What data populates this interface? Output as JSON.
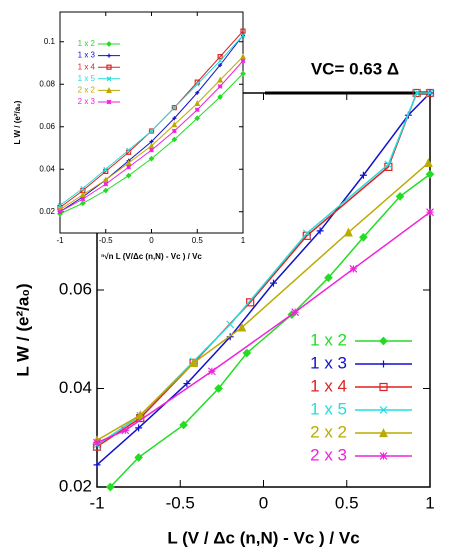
{
  "chart_data": [
    {
      "type": "line",
      "annotation": "VC= 0.63 Δ",
      "xlabel": "L (V / Δc (n,N)  - Vc ) / Vc",
      "ylabel": "L W / (e²/a₀)",
      "xlim": [
        -1,
        1
      ],
      "ylim": [
        0.02,
        0.1
      ],
      "xticks": [
        -1,
        -0.5,
        0,
        0.5,
        1
      ],
      "yticks": [
        0.02,
        0.04,
        0.06
      ],
      "series": [
        {
          "name": "1 x 2",
          "color": "#22dd22",
          "marker": "diamond",
          "x": [
            -0.92,
            -0.75,
            -0.48,
            -0.27,
            -0.1,
            0.17,
            0.39,
            0.6,
            0.82,
            1
          ],
          "values": [
            0.02,
            0.026,
            0.0326,
            0.04,
            0.0472,
            0.055,
            0.0625,
            0.0707,
            0.079,
            0.0835
          ]
        },
        {
          "name": "1 x 3",
          "color": "#1111cc",
          "marker": "plus",
          "x": [
            -1,
            -0.75,
            -0.46,
            -0.2,
            0.06,
            0.34,
            0.6,
            0.87,
            1
          ],
          "values": [
            0.0245,
            0.032,
            0.041,
            0.0505,
            0.0614,
            0.072,
            0.0833,
            0.0955,
            0.1
          ]
        },
        {
          "name": "1 x 4",
          "color": "#dd2222",
          "marker": "square",
          "x": [
            -1,
            -0.74,
            -0.42,
            -0.08,
            0.26,
            0.75,
            0.92,
            1
          ],
          "values": [
            0.0282,
            0.034,
            0.0452,
            0.0575,
            0.071,
            0.085,
            0.1,
            0.1
          ]
        },
        {
          "name": "1 x 5",
          "color": "#22dddd",
          "marker": "x",
          "x": [
            -1,
            -0.74,
            -0.42,
            -0.2,
            0.26,
            0.75,
            0.92,
            1
          ],
          "values": [
            0.0285,
            0.0345,
            0.0455,
            0.053,
            0.0715,
            0.0855,
            0.1,
            0.1
          ]
        },
        {
          "name": "2 x 2",
          "color": "#bbaa00",
          "marker": "triangle",
          "x": [
            -1,
            -0.74,
            -0.42,
            -0.13,
            0.51,
            0.99
          ],
          "values": [
            0.0295,
            0.0346,
            0.0452,
            0.0524,
            0.0717,
            0.0858
          ]
        },
        {
          "name": "2 x 3",
          "color": "#ee22dd",
          "marker": "star",
          "x": [
            -1,
            -0.83,
            -0.31,
            0.19,
            0.54,
            1
          ],
          "values": [
            0.029,
            0.0315,
            0.0435,
            0.0555,
            0.0643,
            0.0758
          ]
        }
      ]
    },
    {
      "type": "line",
      "xlabel": "ⁿ√n L (V/Δc (n,N)  - Vc ) / Vc",
      "ylabel": "L W / (e²/a₀)",
      "xlim": [
        -1,
        1
      ],
      "ylim": [
        0.01,
        0.114
      ],
      "xticks": [
        -1,
        -0.5,
        0,
        0.5,
        1
      ],
      "yticks": [
        0.02,
        0.04,
        0.06,
        0.08,
        0.1
      ],
      "series": [
        {
          "name": "1 x 2",
          "color": "#22dd22",
          "marker": "diamond",
          "x": [
            -1,
            -0.75,
            -0.5,
            -0.25,
            0,
            0.25,
            0.5,
            0.75,
            1
          ],
          "values": [
            0.019,
            0.024,
            0.03,
            0.037,
            0.045,
            0.054,
            0.064,
            0.074,
            0.085
          ]
        },
        {
          "name": "1 x 3",
          "color": "#1111cc",
          "marker": "plus",
          "x": [
            -1,
            -0.75,
            -0.5,
            -0.25,
            0,
            0.25,
            0.5,
            0.75,
            1
          ],
          "values": [
            0.02,
            0.027,
            0.035,
            0.044,
            0.053,
            0.064,
            0.076,
            0.089,
            0.103
          ]
        },
        {
          "name": "1 x 4",
          "color": "#dd2222",
          "marker": "square",
          "x": [
            -1,
            -0.75,
            -0.5,
            -0.25,
            0,
            0.25,
            0.5,
            0.75,
            1
          ],
          "values": [
            0.022,
            0.03,
            0.039,
            0.048,
            0.058,
            0.069,
            0.081,
            0.093,
            0.105
          ]
        },
        {
          "name": "1 x 5",
          "color": "#22dddd",
          "marker": "x",
          "x": [
            -1,
            -0.75,
            -0.5,
            -0.25,
            0,
            0.25,
            0.5,
            0.75,
            1
          ],
          "values": [
            0.023,
            0.031,
            0.04,
            0.049,
            0.058,
            0.069,
            0.08,
            0.091,
            0.103
          ]
        },
        {
          "name": "2 x 2",
          "color": "#bbaa00",
          "marker": "triangle",
          "x": [
            -1,
            -0.75,
            -0.5,
            -0.25,
            0,
            0.25,
            0.5,
            0.75,
            1
          ],
          "values": [
            0.021,
            0.028,
            0.035,
            0.043,
            0.051,
            0.061,
            0.071,
            0.082,
            0.093
          ]
        },
        {
          "name": "2 x 3",
          "color": "#ee22dd",
          "marker": "star",
          "x": [
            -1,
            -0.75,
            -0.5,
            -0.25,
            0,
            0.25,
            0.5,
            0.75,
            1
          ],
          "values": [
            0.02,
            0.026,
            0.033,
            0.041,
            0.049,
            0.058,
            0.068,
            0.079,
            0.091
          ]
        }
      ]
    }
  ]
}
